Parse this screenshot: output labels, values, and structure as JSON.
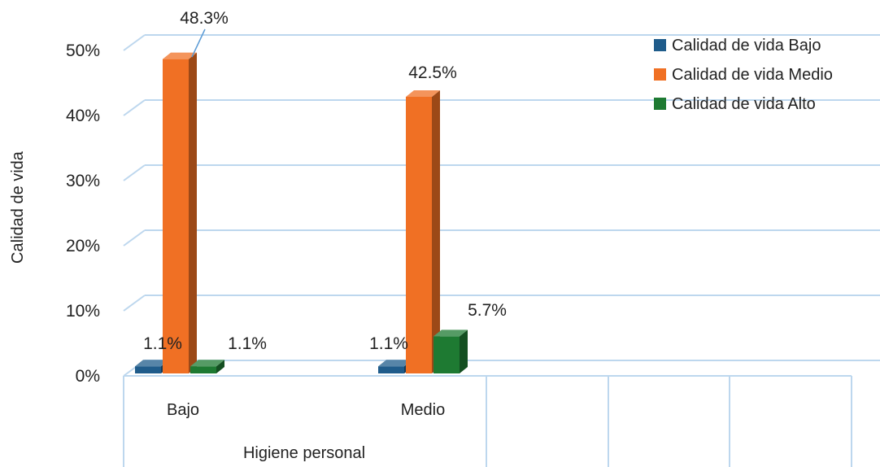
{
  "chart_data": {
    "type": "bar",
    "variant": "3d-clustered-column",
    "categories": [
      "Bajo",
      "Medio"
    ],
    "empty_category_slots": 3,
    "series": [
      {
        "name": "Calidad de vida Bajo",
        "values": [
          1.1,
          1.1
        ],
        "color": "#1F5C8B"
      },
      {
        "name": "Calidad de vida Medio",
        "values": [
          48.3,
          42.5
        ],
        "color": "#F07024"
      },
      {
        "name": "Calidad de vida Alto",
        "values": [
          1.1,
          5.7
        ],
        "color": "#1E7A32"
      }
    ],
    "data_labels": [
      [
        "1.1%",
        "1.1%"
      ],
      [
        "48.3%",
        "42.5%"
      ],
      [
        "1.1%",
        "5.7%"
      ]
    ],
    "label_hidden": [
      [
        false,
        false
      ],
      [
        false,
        false
      ],
      [
        false,
        false
      ]
    ],
    "xlabel": "Higiene personal",
    "ylabel": "Calidad de vida",
    "ylim": [
      0,
      50
    ],
    "yticks": [
      0,
      10,
      20,
      30,
      40,
      50
    ],
    "ytick_labels": [
      "0%",
      "10%",
      "20%",
      "30%",
      "40%",
      "50%"
    ],
    "grid": true,
    "legend_position": "top-right",
    "gridline_color": "#BDD7EE"
  }
}
